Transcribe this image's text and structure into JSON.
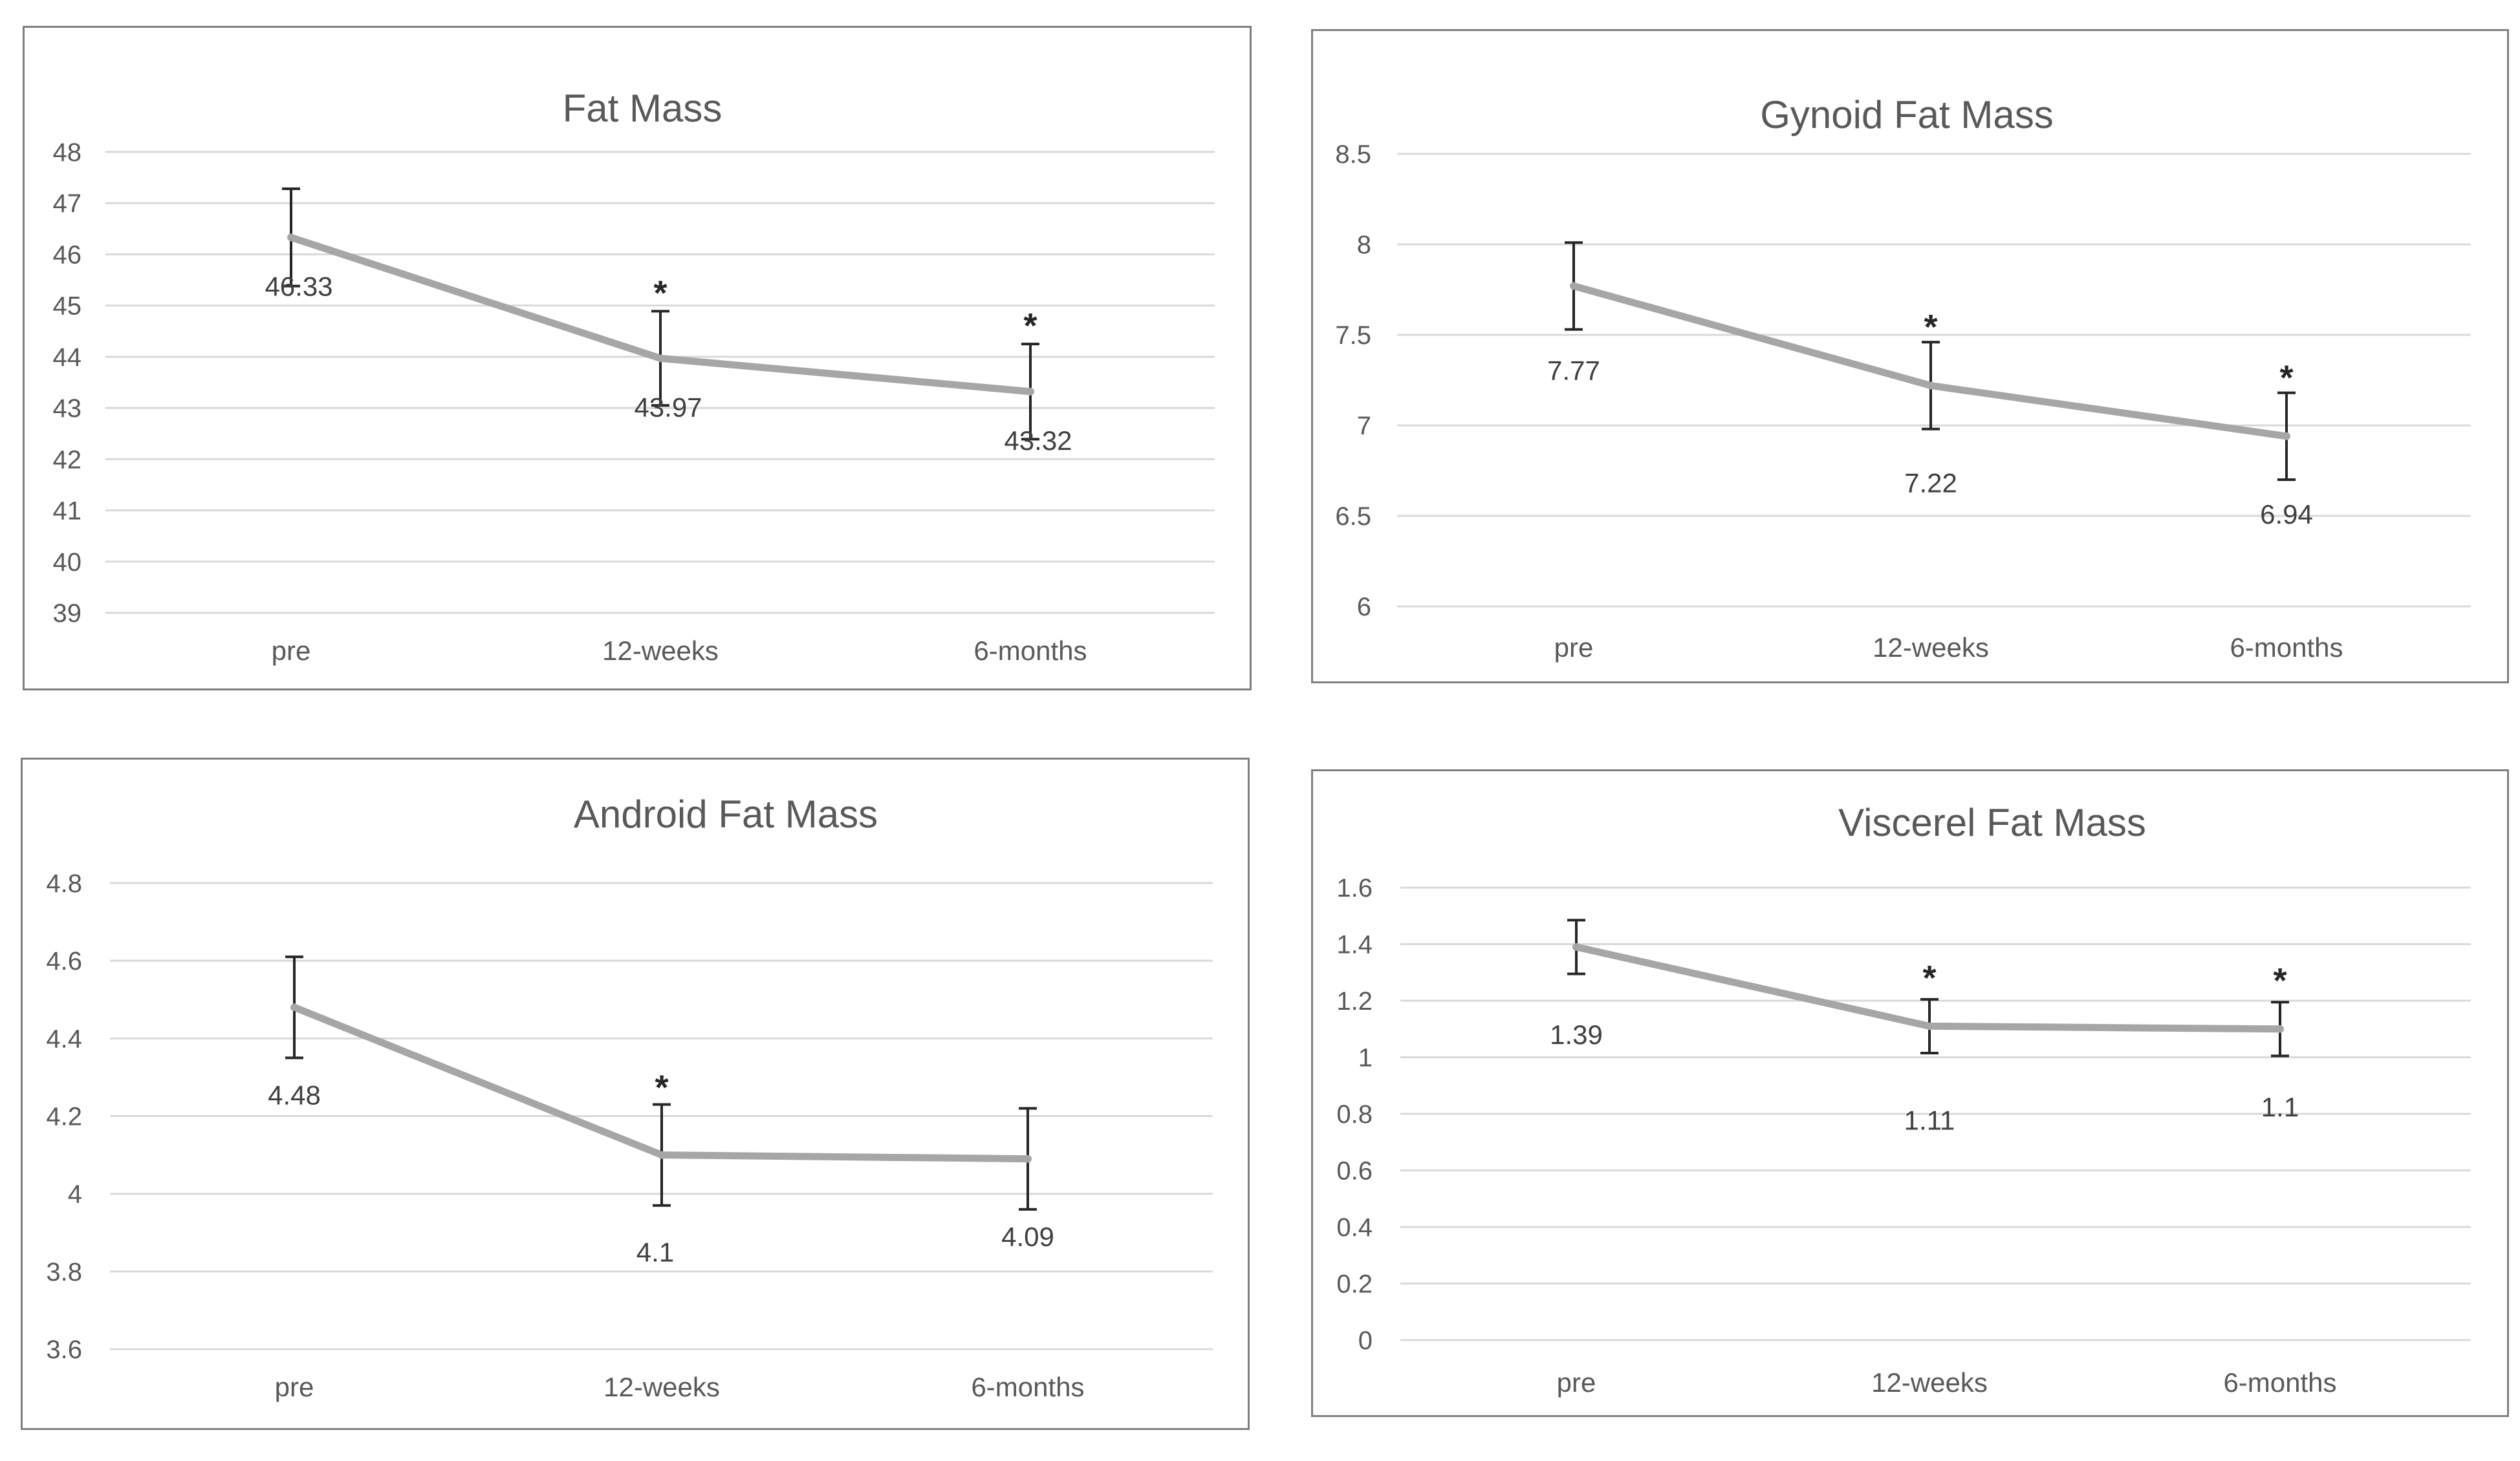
{
  "chart_data": [
    {
      "type": "line",
      "title": "Fat Mass",
      "categories": [
        "pre",
        "12-weeks",
        "6-months"
      ],
      "values": [
        46.33,
        43.97,
        43.32
      ],
      "data_labels": [
        "46.33",
        "43.97",
        "43.32"
      ],
      "error_bars": [
        0.95,
        0.92,
        0.93
      ],
      "significance": [
        "",
        "*",
        "*"
      ],
      "ylim": [
        39,
        48
      ],
      "yticks": [
        "39",
        "40",
        "41",
        "42",
        "43",
        "44",
        "45",
        "46",
        "47",
        "48"
      ],
      "grid": true,
      "xlabel": "",
      "ylabel": ""
    },
    {
      "type": "line",
      "title": "Gynoid Fat Mass",
      "categories": [
        "pre",
        "12-weeks",
        "6-months"
      ],
      "values": [
        7.77,
        7.22,
        6.94
      ],
      "data_labels": [
        "7.77",
        "7.22",
        "6.94"
      ],
      "error_bars": [
        0.24,
        0.24,
        0.24
      ],
      "significance": [
        "",
        "*",
        "*"
      ],
      "ylim": [
        6,
        8.5
      ],
      "yticks": [
        "6",
        "6.5",
        "7",
        "7.5",
        "8",
        "8.5"
      ],
      "grid": true,
      "xlabel": "",
      "ylabel": ""
    },
    {
      "type": "line",
      "title": "Android Fat Mass",
      "categories": [
        "pre",
        "12-weeks",
        "6-months"
      ],
      "values": [
        4.48,
        4.1,
        4.09
      ],
      "data_labels": [
        "4.48",
        "4.1",
        "4.09"
      ],
      "error_bars": [
        0.13,
        0.13,
        0.13
      ],
      "significance": [
        "",
        "*",
        ""
      ],
      "ylim": [
        3.6,
        4.8
      ],
      "yticks": [
        "3.6",
        "3.8",
        "4",
        "4.2",
        "4.4",
        "4.6",
        "4.8"
      ],
      "grid": true,
      "xlabel": "",
      "ylabel": ""
    },
    {
      "type": "line",
      "title": "Viscerel Fat Mass",
      "categories": [
        "pre",
        "12-weeks",
        "6-months"
      ],
      "values": [
        1.39,
        1.11,
        1.1
      ],
      "data_labels": [
        "1.39",
        "1.11",
        "1.1"
      ],
      "error_bars": [
        0.095,
        0.095,
        0.095
      ],
      "significance": [
        "",
        "*",
        "*"
      ],
      "ylim": [
        0,
        1.6
      ],
      "yticks": [
        "0",
        "0.2",
        "0.4",
        "0.6",
        "0.8",
        "1",
        "1.2",
        "1.4",
        "1.6"
      ],
      "grid": true,
      "xlabel": "",
      "ylabel": ""
    }
  ],
  "colors": {
    "line": "#a6a6a6",
    "grid": "#d9d9d9",
    "error_bar": "#262626",
    "border": "#7f7f7f"
  }
}
